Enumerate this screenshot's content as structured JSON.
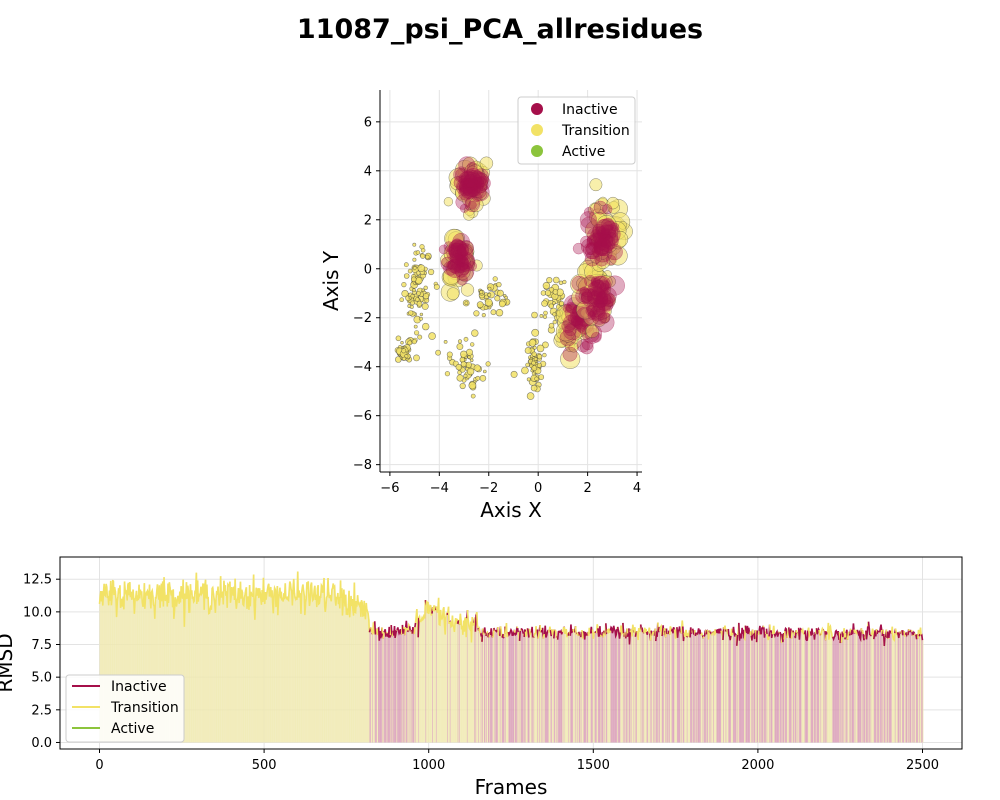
{
  "figure_title": "11087_psi_PCA_allresidues",
  "colors": {
    "inactive": "#a50f4a",
    "transition": "#f2e266",
    "active": "#8cc43c",
    "transition_fill": "#efe8b0",
    "inactive_fill": "#d99bb4"
  },
  "chart_data": [
    {
      "type": "scatter",
      "xlabel": "Axis X",
      "ylabel": "Axis Y",
      "xlim": [
        -6.4,
        4.2
      ],
      "ylim": [
        -8.3,
        7.3
      ],
      "xticks": [
        -6,
        -4,
        -2,
        0,
        2,
        4
      ],
      "xtick_labels": [
        "−6",
        "−4",
        "−2",
        "0",
        "2",
        "4"
      ],
      "yticks": [
        -8,
        -6,
        -4,
        -2,
        0,
        2,
        4,
        6
      ],
      "ytick_labels": [
        "−8",
        "−6",
        "−4",
        "−2",
        "0",
        "2",
        "4",
        "6"
      ],
      "grid": true,
      "legend": "top-right",
      "legend_entries": [
        "Inactive",
        "Transition",
        "Active"
      ],
      "clusters": [
        {
          "state": "Transition",
          "size": "small",
          "center": [
            -4.9,
            -0.8
          ],
          "spread": [
            0.55,
            1.6
          ],
          "count": 90
        },
        {
          "state": "Transition",
          "size": "small",
          "center": [
            -5.4,
            -3.4
          ],
          "spread": [
            0.3,
            0.4
          ],
          "count": 35
        },
        {
          "state": "Transition",
          "size": "small",
          "center": [
            -2.9,
            -4.0
          ],
          "spread": [
            0.6,
            0.9
          ],
          "count": 55
        },
        {
          "state": "Transition",
          "size": "large",
          "center": [
            -2.7,
            3.5
          ],
          "spread": [
            0.5,
            0.9
          ],
          "count": 60
        },
        {
          "state": "Inactive",
          "size": "large",
          "center": [
            -2.8,
            3.3
          ],
          "spread": [
            0.45,
            0.9
          ],
          "count": 40
        },
        {
          "state": "Transition",
          "size": "large",
          "center": [
            -3.3,
            0.3
          ],
          "spread": [
            0.45,
            0.8
          ],
          "count": 60
        },
        {
          "state": "Inactive",
          "size": "large",
          "center": [
            -3.2,
            0.4
          ],
          "spread": [
            0.4,
            0.7
          ],
          "count": 35
        },
        {
          "state": "Transition",
          "size": "small",
          "center": [
            -2.0,
            -1.2
          ],
          "spread": [
            0.8,
            0.6
          ],
          "count": 40
        },
        {
          "state": "Transition",
          "size": "small",
          "center": [
            -0.2,
            -3.8
          ],
          "spread": [
            0.35,
            1.1
          ],
          "count": 60
        },
        {
          "state": "Transition",
          "size": "small",
          "center": [
            0.6,
            -1.4
          ],
          "spread": [
            0.5,
            1.0
          ],
          "count": 45
        },
        {
          "state": "Transition",
          "size": "large",
          "center": [
            1.3,
            -2.4
          ],
          "spread": [
            0.5,
            0.8
          ],
          "count": 40
        },
        {
          "state": "Inactive",
          "size": "large",
          "center": [
            1.6,
            -2.0
          ],
          "spread": [
            0.5,
            0.8
          ],
          "count": 30
        },
        {
          "state": "Transition",
          "size": "large",
          "center": [
            2.3,
            -1.0
          ],
          "spread": [
            0.6,
            1.0
          ],
          "count": 60
        },
        {
          "state": "Inactive",
          "size": "large",
          "center": [
            2.4,
            -1.2
          ],
          "spread": [
            0.6,
            0.9
          ],
          "count": 45
        },
        {
          "state": "Transition",
          "size": "large",
          "center": [
            2.8,
            1.5
          ],
          "spread": [
            0.55,
            1.0
          ],
          "count": 70
        },
        {
          "state": "Inactive",
          "size": "large",
          "center": [
            2.5,
            1.2
          ],
          "spread": [
            0.5,
            0.9
          ],
          "count": 45
        }
      ]
    },
    {
      "type": "line",
      "xlabel": "Frames",
      "ylabel": "RMSD",
      "xlim": [
        -120,
        2620
      ],
      "ylim": [
        -0.5,
        14.2
      ],
      "xticks": [
        0,
        500,
        1000,
        1500,
        2000,
        2500
      ],
      "xtick_labels": [
        "0",
        "500",
        "1000",
        "1500",
        "2000",
        "2500"
      ],
      "yticks": [
        0.0,
        2.5,
        5.0,
        7.5,
        10.0,
        12.5
      ],
      "ytick_labels": [
        "0.0",
        "2.5",
        "5.0",
        "7.5",
        "10.0",
        "12.5"
      ],
      "grid": true,
      "legend": "lower-left",
      "legend_entries": [
        "Inactive",
        "Transition",
        "Active"
      ],
      "frames": [
        0,
        2500
      ],
      "segments": [
        {
          "frames": [
            0,
            820
          ],
          "state": "Transition",
          "level": 11.3,
          "noise": 0.8,
          "drop": [
            [
              720,
              11.0
            ],
            [
              820,
              9.6
            ]
          ]
        },
        {
          "frames": [
            820,
            960
          ],
          "state": "Inactive",
          "level": 8.5,
          "noise": 0.35
        },
        {
          "frames": [
            960,
            1150
          ],
          "state": "Transition",
          "level": 9.5,
          "noise": 0.7
        },
        {
          "frames": [
            1150,
            2500
          ],
          "state": "Mixed",
          "level": 8.4,
          "noise": 0.35
        }
      ]
    }
  ]
}
